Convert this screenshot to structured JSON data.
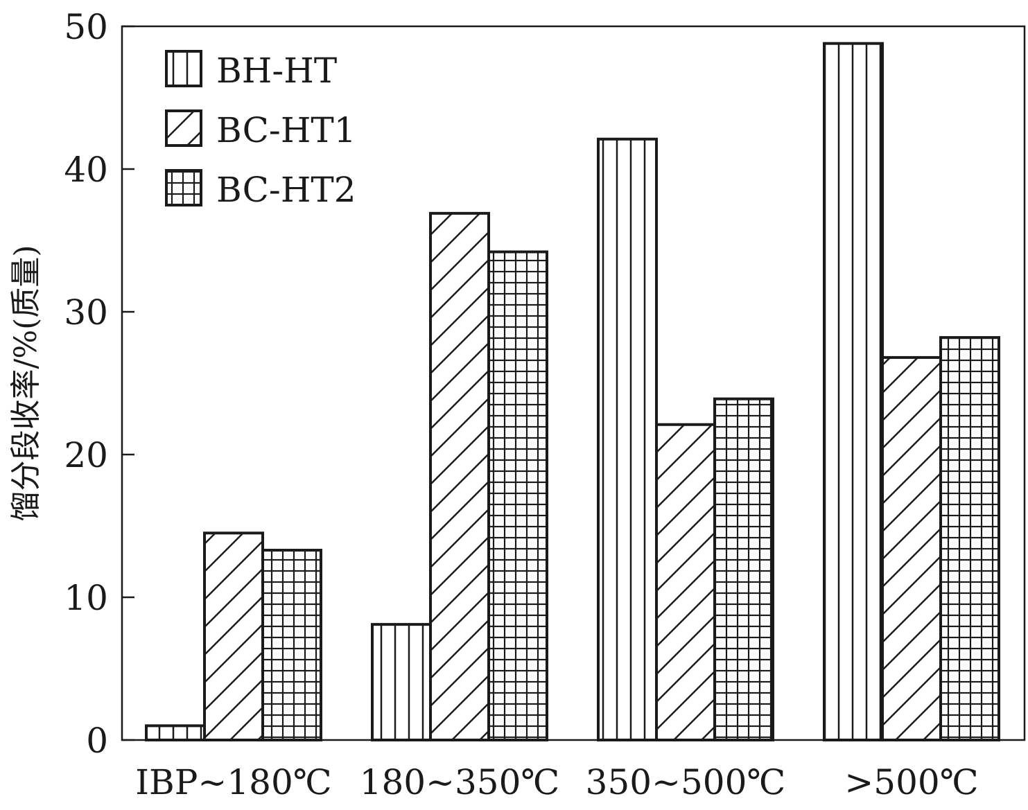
{
  "chart_data": {
    "type": "bar",
    "ylabel": "馏分段收率/%(质量)",
    "xlabel": "",
    "ylim": [
      0,
      50
    ],
    "yticks": [
      0,
      10,
      20,
      30,
      40,
      50
    ],
    "categories": [
      "IBP~180℃",
      "180~350℃",
      "350~500℃",
      ">500℃"
    ],
    "series": [
      {
        "name": "BH-HT",
        "pattern": "vertical-lines",
        "values": [
          1.0,
          8.1,
          42.1,
          48.8
        ]
      },
      {
        "name": "BC-HT1",
        "pattern": "diagonal-lines",
        "values": [
          14.5,
          36.9,
          22.1,
          26.8
        ]
      },
      {
        "name": "BC-HT2",
        "pattern": "grid-lines",
        "values": [
          13.3,
          34.2,
          23.9,
          28.2
        ]
      }
    ],
    "legend_position": "top-left",
    "grid": false,
    "colors": {
      "stroke": "#1a1a1a",
      "fill": "#ffffff"
    }
  }
}
